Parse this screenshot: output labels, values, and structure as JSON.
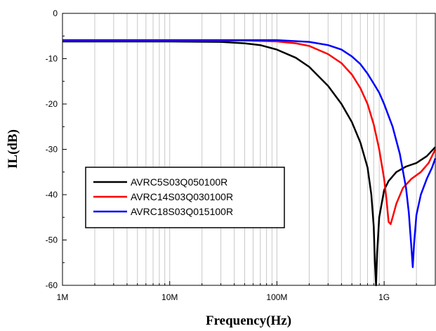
{
  "chart_data": {
    "type": "line",
    "title": "",
    "xlabel": "Frequency(Hz)",
    "ylabel": "IL(dB)",
    "x_scale": "log",
    "xlim": [
      1000000,
      3000000000
    ],
    "ylim": [
      -60,
      0
    ],
    "x_ticks": [
      {
        "value": 1000000,
        "label": "1M"
      },
      {
        "value": 10000000,
        "label": "10M"
      },
      {
        "value": 100000000,
        "label": "100M"
      },
      {
        "value": 1000000000,
        "label": "1G"
      }
    ],
    "y_ticks": [
      {
        "value": 0,
        "label": "0"
      },
      {
        "value": -10,
        "label": "-10"
      },
      {
        "value": -20,
        "label": "-20"
      },
      {
        "value": -30,
        "label": "-30"
      },
      {
        "value": -40,
        "label": "-40"
      },
      {
        "value": -50,
        "label": "-50"
      },
      {
        "value": -60,
        "label": "-60"
      }
    ],
    "grid": {
      "vertical_minor": true,
      "horizontal": false
    },
    "legend_position": "lower-left",
    "series": [
      {
        "name": "AVRC5S03Q050100R",
        "color": "#000000",
        "points": [
          [
            1000000,
            -6.2
          ],
          [
            10000000,
            -6.2
          ],
          [
            30000000,
            -6.3
          ],
          [
            50000000,
            -6.6
          ],
          [
            70000000,
            -7.0
          ],
          [
            100000000,
            -8.0
          ],
          [
            150000000,
            -9.8
          ],
          [
            200000000,
            -11.8
          ],
          [
            300000000,
            -16.0
          ],
          [
            400000000,
            -20.0
          ],
          [
            500000000,
            -24.0
          ],
          [
            600000000,
            -28.5
          ],
          [
            700000000,
            -34.0
          ],
          [
            760000000,
            -40.0
          ],
          [
            800000000,
            -47.0
          ],
          [
            820000000,
            -55.0
          ],
          [
            840000000,
            -60.0
          ],
          [
            860000000,
            -53.0
          ],
          [
            900000000,
            -45.0
          ],
          [
            1000000000,
            -39.0
          ],
          [
            1100000000,
            -37.0
          ],
          [
            1300000000,
            -35.0
          ],
          [
            1600000000,
            -33.8
          ],
          [
            2000000000,
            -33.0
          ],
          [
            2500000000,
            -31.5
          ],
          [
            3000000000,
            -29.5
          ]
        ]
      },
      {
        "name": "AVRC14S03Q030100R",
        "color": "#ff0000",
        "points": [
          [
            1000000,
            -6.0
          ],
          [
            10000000,
            -6.0
          ],
          [
            50000000,
            -6.0
          ],
          [
            100000000,
            -6.2
          ],
          [
            150000000,
            -6.6
          ],
          [
            200000000,
            -7.2
          ],
          [
            300000000,
            -9.0
          ],
          [
            400000000,
            -11.0
          ],
          [
            500000000,
            -13.5
          ],
          [
            600000000,
            -16.5
          ],
          [
            700000000,
            -20.0
          ],
          [
            800000000,
            -24.5
          ],
          [
            900000000,
            -30.0
          ],
          [
            1000000000,
            -36.5
          ],
          [
            1050000000,
            -41.0
          ],
          [
            1100000000,
            -46.0
          ],
          [
            1150000000,
            -46.5
          ],
          [
            1200000000,
            -45.0
          ],
          [
            1300000000,
            -42.0
          ],
          [
            1500000000,
            -38.5
          ],
          [
            1800000000,
            -36.5
          ],
          [
            2200000000,
            -35.0
          ],
          [
            2600000000,
            -33.0
          ],
          [
            3000000000,
            -30.0
          ]
        ]
      },
      {
        "name": "AVRC18S03Q015100R",
        "color": "#0000ff",
        "points": [
          [
            1000000,
            -5.9
          ],
          [
            10000000,
            -5.9
          ],
          [
            100000000,
            -5.9
          ],
          [
            200000000,
            -6.3
          ],
          [
            300000000,
            -7.0
          ],
          [
            400000000,
            -8.0
          ],
          [
            500000000,
            -9.5
          ],
          [
            600000000,
            -11.2
          ],
          [
            700000000,
            -13.3
          ],
          [
            800000000,
            -15.5
          ],
          [
            900000000,
            -17.5
          ],
          [
            1000000000,
            -20.0
          ],
          [
            1200000000,
            -25.0
          ],
          [
            1400000000,
            -31.0
          ],
          [
            1600000000,
            -38.5
          ],
          [
            1700000000,
            -44.0
          ],
          [
            1800000000,
            -52.0
          ],
          [
            1850000000,
            -56.0
          ],
          [
            1900000000,
            -51.0
          ],
          [
            2000000000,
            -44.5
          ],
          [
            2200000000,
            -40.0
          ],
          [
            2500000000,
            -36.5
          ],
          [
            2800000000,
            -34.0
          ],
          [
            3000000000,
            -32.0
          ]
        ]
      }
    ]
  }
}
